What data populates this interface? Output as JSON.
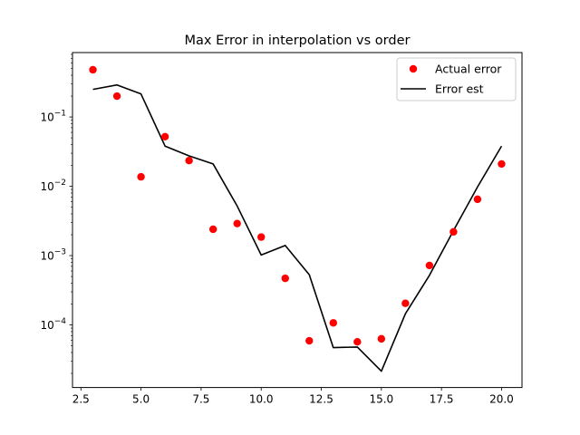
{
  "chart_data": {
    "type": "scatter",
    "title": "Max Error in interpolation vs order",
    "xlabel": "",
    "ylabel": "",
    "x_scale": "linear",
    "y_scale": "log",
    "xlim": [
      2.15,
      20.85
    ],
    "ylim": [
      1.25e-05,
      0.85
    ],
    "grid": false,
    "legend_position": "top-right",
    "x_ticks": [
      {
        "value": 2.5,
        "label": "2.5"
      },
      {
        "value": 5.0,
        "label": "5.0"
      },
      {
        "value": 7.5,
        "label": "7.5"
      },
      {
        "value": 10.0,
        "label": "10.0"
      },
      {
        "value": 12.5,
        "label": "12.5"
      },
      {
        "value": 15.0,
        "label": "15.0"
      },
      {
        "value": 17.5,
        "label": "17.5"
      },
      {
        "value": 20.0,
        "label": "20.0"
      }
    ],
    "y_ticks": [
      {
        "value": 0.0001,
        "base": "10",
        "exp": "−4"
      },
      {
        "value": 0.001,
        "base": "10",
        "exp": "−3"
      },
      {
        "value": 0.01,
        "base": "10",
        "exp": "−2"
      },
      {
        "value": 0.1,
        "base": "10",
        "exp": "−1"
      }
    ],
    "series": [
      {
        "name": "Actual error",
        "style": "markers",
        "color": "#ff0000",
        "x": [
          3,
          4,
          5,
          6,
          7,
          8,
          9,
          10,
          11,
          12,
          13,
          14,
          15,
          16,
          17,
          18,
          19,
          20
        ],
        "y": [
          0.48,
          0.2,
          0.0137,
          0.052,
          0.0235,
          0.0024,
          0.0029,
          0.00185,
          0.00047,
          5.9e-05,
          0.000107,
          5.7e-05,
          6.3e-05,
          0.000205,
          0.00072,
          0.0022,
          0.0065,
          0.021
        ]
      },
      {
        "name": "Error est",
        "style": "line",
        "color": "#000000",
        "x": [
          3,
          4,
          5,
          6,
          7,
          8,
          9,
          10,
          11,
          12,
          13,
          14,
          15,
          16,
          17,
          18,
          19,
          20
        ],
        "y": [
          0.25,
          0.29,
          0.215,
          0.038,
          0.0275,
          0.021,
          0.0052,
          0.00102,
          0.0014,
          0.00053,
          4.7e-05,
          4.8e-05,
          2.15e-05,
          0.000145,
          0.00052,
          0.0023,
          0.0098,
          0.038
        ]
      }
    ]
  }
}
